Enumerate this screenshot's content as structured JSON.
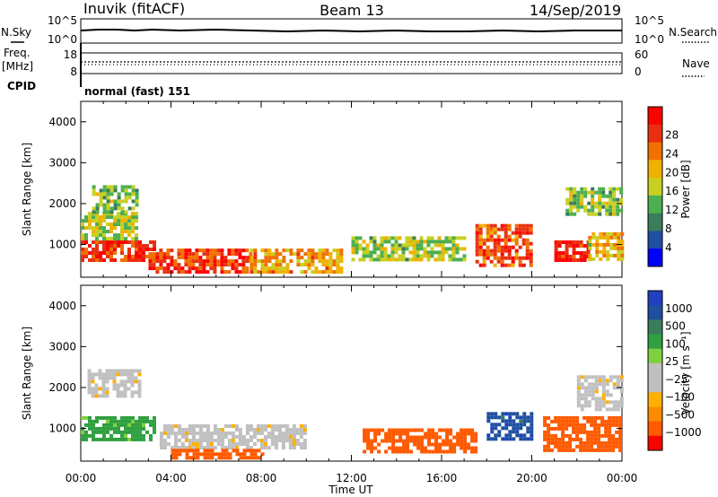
{
  "header": {
    "station": "Inuvik (fitACF)",
    "beam": "Beam 13",
    "date": "14/Sep/2019"
  },
  "top_panel": {
    "left_label": "N.Sky",
    "right_label": "N.Search",
    "left_ticks": [
      "10^5",
      "10^0"
    ],
    "right_ticks": [
      "10^5",
      "10^0"
    ]
  },
  "freq_panel": {
    "left_label_line1": "Freq.",
    "left_label_line2": "[MHz]",
    "right_label": "Nave",
    "left_ticks": [
      "18",
      "8"
    ],
    "right_ticks": [
      "60",
      "0"
    ]
  },
  "cpid": {
    "label": "CPID",
    "value": "normal (fast) 151"
  },
  "colors": {
    "power_scale": [
      "#0000ff",
      "#1e4fa0",
      "#3a7d5a",
      "#4caf50",
      "#c8d020",
      "#f0b000",
      "#f07000",
      "#e83010",
      "#ff0000"
    ],
    "velocity_scale": [
      "#ff0000",
      "#ff5a00",
      "#ff8c00",
      "#ffb000",
      "#c0c0c0",
      "#c0c0c0",
      "#7fd040",
      "#30a040",
      "#3a7d5a",
      "#1e4fa0",
      "#2040c0"
    ]
  },
  "chart_data": [
    {
      "type": "heatmap",
      "title": "",
      "xlabel": "Time UT",
      "ylabel": "Slant Range [km]",
      "x_tick_labels": [
        "00:00",
        "04:00",
        "08:00",
        "12:00",
        "16:00",
        "20:00",
        "00:00"
      ],
      "y_ticks": [
        1000,
        2000,
        3000,
        4000
      ],
      "ylim": [
        200,
        4500
      ],
      "colorbar": {
        "label": "Power [dB]",
        "ticks": [
          "4",
          "8",
          "12",
          "16",
          "20",
          "24",
          "28"
        ],
        "range": [
          0,
          30
        ]
      },
      "echo_regions": [
        {
          "t_start": 0.0,
          "t_end": 3.2,
          "r_min": 600,
          "r_max": 1100,
          "value": 27
        },
        {
          "t_start": 0.0,
          "t_end": 2.5,
          "r_min": 1100,
          "r_max": 1800,
          "value": 15
        },
        {
          "t_start": 0.5,
          "t_end": 2.5,
          "r_min": 1800,
          "r_max": 2450,
          "value": 12
        },
        {
          "t_start": 3.0,
          "t_end": 7.5,
          "r_min": 350,
          "r_max": 900,
          "value": 26
        },
        {
          "t_start": 7.5,
          "t_end": 11.5,
          "r_min": 300,
          "r_max": 900,
          "value": 20
        },
        {
          "t_start": 12.0,
          "t_end": 17.0,
          "r_min": 600,
          "r_max": 1200,
          "value": 14
        },
        {
          "t_start": 17.5,
          "t_end": 20.0,
          "r_min": 450,
          "r_max": 1500,
          "value": 25
        },
        {
          "t_start": 21.0,
          "t_end": 22.5,
          "r_min": 600,
          "r_max": 1100,
          "value": 28
        },
        {
          "t_start": 22.5,
          "t_end": 24.0,
          "r_min": 600,
          "r_max": 1300,
          "value": 18
        },
        {
          "t_start": 21.5,
          "t_end": 24.0,
          "r_min": 1700,
          "r_max": 2400,
          "value": 13
        }
      ]
    },
    {
      "type": "heatmap",
      "title": "",
      "xlabel": "Time UT",
      "ylabel": "Slant Range [km]",
      "x_tick_labels": [
        "00:00",
        "04:00",
        "08:00",
        "12:00",
        "16:00",
        "20:00",
        "00:00"
      ],
      "y_ticks": [
        1000,
        2000,
        3000,
        4000
      ],
      "ylim": [
        200,
        4500
      ],
      "colorbar": {
        "label": "Velocity [m s⁻¹]",
        "ticks": [
          "1000",
          "500",
          "100",
          "25",
          "−25",
          "−100",
          "−500",
          "−1000"
        ]
      },
      "echo_regions": [
        {
          "t_start": 0.0,
          "t_end": 3.2,
          "r_min": 700,
          "r_max": 1300,
          "value": 150
        },
        {
          "t_start": 0.3,
          "t_end": 2.6,
          "r_min": 1800,
          "r_max": 2450,
          "value": 0
        },
        {
          "t_start": 3.5,
          "t_end": 10.0,
          "r_min": 500,
          "r_max": 1100,
          "value": 0
        },
        {
          "t_start": 4.0,
          "t_end": 8.0,
          "r_min": 300,
          "r_max": 500,
          "value": -300
        },
        {
          "t_start": 12.5,
          "t_end": 17.5,
          "r_min": 400,
          "r_max": 1000,
          "value": -300
        },
        {
          "t_start": 18.0,
          "t_end": 20.0,
          "r_min": 700,
          "r_max": 1400,
          "value": 800
        },
        {
          "t_start": 20.5,
          "t_end": 24.0,
          "r_min": 500,
          "r_max": 1300,
          "value": -300
        },
        {
          "t_start": 22.0,
          "t_end": 24.0,
          "r_min": 1500,
          "r_max": 2300,
          "value": 0
        }
      ]
    }
  ]
}
